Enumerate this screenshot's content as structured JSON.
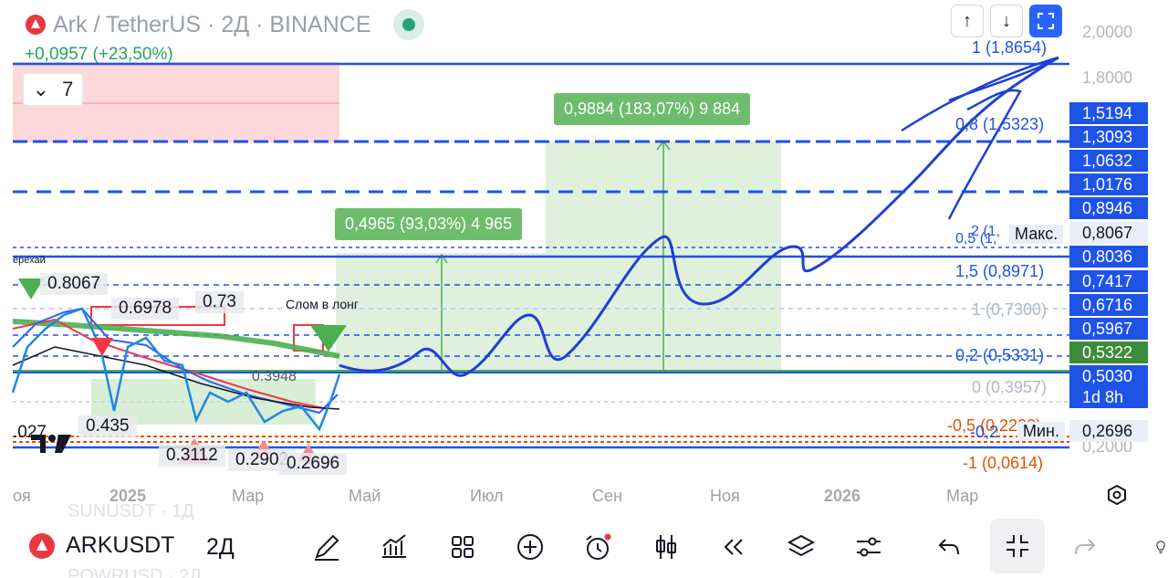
{
  "legend": {
    "title": "Ark / TetherUS · 2Д · BINANCE",
    "change": "+0,0957 (+23,50%)",
    "indicators_count": "7"
  },
  "toolbar": {
    "up_icon": "arrow-up-icon",
    "down_icon": "arrow-down-icon",
    "fullscreen_icon": "fullscreen-icon"
  },
  "price_axis": {
    "plain_ticks": [
      {
        "label": "2,0000",
        "top": 25
      },
      {
        "label": "1,8000",
        "top": 75
      },
      {
        "label": "0,2000",
        "top": 479
      }
    ],
    "tags": [
      {
        "label": "1,5194",
        "bg": "#1e53e5"
      },
      {
        "label": "1,3093",
        "bg": "#1e53e5"
      },
      {
        "label": "1,0632",
        "bg": "#1e53e5"
      },
      {
        "label": "1,0176",
        "bg": "#1e53e5"
      },
      {
        "label": "0,8946",
        "bg": "#1e53e5"
      },
      {
        "label": "0,8067",
        "bg": "#e9eef8",
        "fg": "#131722"
      },
      {
        "label": "0,8036",
        "bg": "#1e53e5"
      },
      {
        "label": "0,7417",
        "bg": "#1e53e5"
      },
      {
        "label": "0,6716",
        "bg": "#1e53e5"
      },
      {
        "label": "0,5967",
        "bg": "#1e53e5"
      },
      {
        "label": "0,5322",
        "bg": "#3d8b3d"
      },
      {
        "label": "0,5030",
        "bg": "#1e53e5"
      },
      {
        "label": "1d 8h",
        "bg": "#1e53e5"
      },
      {
        "label": "0,2696",
        "bg": "#e9eef8",
        "fg": "#131722"
      }
    ],
    "max_label": "Макс.",
    "min_label": "Мин."
  },
  "fib_levels": [
    {
      "label": "1 (1,8654)",
      "color": "#1e53e5"
    },
    {
      "label": "0,8 (1,5323)",
      "color": "#1e53e5"
    },
    {
      "label": "2 (1,",
      "color": "#1e53e5"
    },
    {
      "label": "0,5 (1,",
      "color": "#1e53e5"
    },
    {
      "label": "1,5 (0,8971)",
      "color": "#1e53e5"
    },
    {
      "label": "1 (0,7300)",
      "color": "#b0b6c4"
    },
    {
      "label": "0,2 (0,5331)",
      "color": "#1e53e5"
    },
    {
      "label": "0 (0,3957)",
      "color": "#b0b6c4"
    },
    {
      "label": "-0,5 (0,2200)",
      "color": "#e65100"
    },
    {
      "label": "-0,2 ",
      "color": "#1e53e5"
    },
    {
      "label": "-1 (0,0614)",
      "color": "#e65100"
    }
  ],
  "measure_boxes": [
    {
      "label": "0,9884 (183,07%) 9 884"
    },
    {
      "label": "0,4965 (93,03%) 4 965"
    }
  ],
  "annotations": {
    "label_a": "0.8067",
    "label_b": "0.6978",
    "label_c": "0.73",
    "label_d": "0.435",
    "label_e": "0.3112",
    "label_f": "0.2902",
    "label_g": "0.2696",
    "label_h": ".027",
    "label_i": "0.3948",
    "note_break": "Слом в лонг",
    "note_left": "ерехай"
  },
  "time_axis": [
    {
      "label": "оя",
      "bold": false
    },
    {
      "label": "2025",
      "bold": true
    },
    {
      "label": "Мар",
      "bold": false
    },
    {
      "label": "Май",
      "bold": false
    },
    {
      "label": "Июл",
      "bold": false
    },
    {
      "label": "Сен",
      "bold": false
    },
    {
      "label": "Ноя",
      "bold": false
    },
    {
      "label": "2026",
      "bold": true
    },
    {
      "label": "Мар",
      "bold": false
    }
  ],
  "bottom_bar": {
    "symbol": "ARKUSDT",
    "interval": "2Д",
    "ghost_above": "SUNUSDT · 1Д",
    "ghost_below": "POWRUSD · 2Д"
  },
  "colors": {
    "blue": "#1e53e5",
    "green": "#26a269",
    "red": "#f23645",
    "orange": "#e65100"
  }
}
